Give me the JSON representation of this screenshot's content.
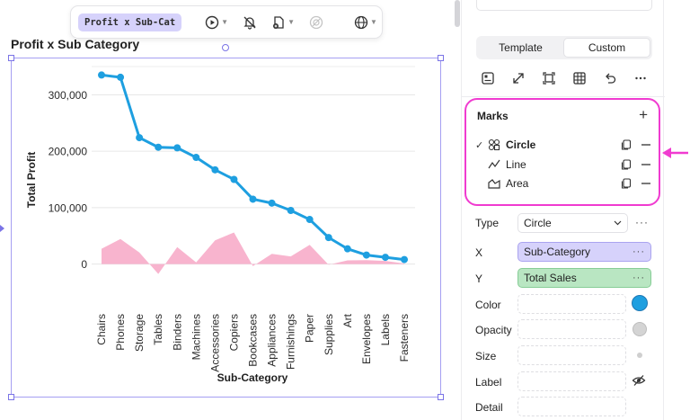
{
  "toolbar": {
    "chip_label": "Profit x Sub-Cat",
    "buttons": [
      "play-icon",
      "bell-off-icon",
      "file-plus-icon",
      "disabled-icon",
      "globe-icon"
    ]
  },
  "chart_title_text": "Profit x Sub Category",
  "chart_data": {
    "type": "line",
    "categories": [
      "Chairs",
      "Phones",
      "Storage",
      "Tables",
      "Binders",
      "Machines",
      "Accessories",
      "Copiers",
      "Bookcases",
      "Appliances",
      "Furnishings",
      "Paper",
      "Supplies",
      "Art",
      "Envelopes",
      "Labels",
      "Fasteners"
    ],
    "series": [
      {
        "mark": "line-circle",
        "color": "#1e9fe0",
        "values": [
          335000,
          331000,
          224000,
          207000,
          206000,
          189000,
          167000,
          150000,
          115000,
          108000,
          95000,
          79000,
          47000,
          27000,
          16000,
          12000,
          8000
        ]
      },
      {
        "mark": "area",
        "color": "#f8b4ce",
        "values": [
          27000,
          44500,
          20500,
          -17500,
          30000,
          3000,
          42000,
          56000,
          -3500,
          18100,
          13500,
          34000,
          -1200,
          6500,
          7000,
          5500,
          950
        ]
      }
    ],
    "xlabel": "Sub-Category",
    "ylabel": "Total Profit",
    "yticks": [
      0,
      100000,
      200000,
      300000
    ],
    "ytick_labels": [
      "0",
      "100,000",
      "200,000",
      "300,000"
    ],
    "ylim": [
      -50000,
      350000
    ],
    "grid": true
  },
  "panel": {
    "tabs": [
      "Template",
      "Custom"
    ],
    "active_tab": "Custom",
    "icons": [
      "layout-icon",
      "expand-icon",
      "fit-frame-icon",
      "table-icon",
      "undo-icon",
      "more-icon"
    ],
    "marks_title": "Marks",
    "marks": [
      {
        "label": "Circle",
        "icon": "circle-shapes-icon",
        "checked": true
      },
      {
        "label": "Line",
        "icon": "line-chart-icon",
        "checked": false
      },
      {
        "label": "Area",
        "icon": "area-chart-icon",
        "checked": false
      }
    ],
    "type_label": "Type",
    "type_value": "Circle",
    "x_label": "X",
    "x_value": "Sub-Category",
    "y_label": "Y",
    "y_value": "Total Sales",
    "color_label": "Color",
    "opacity_label": "Opacity",
    "size_label": "Size",
    "label_label": "Label",
    "detail_label": "Detail",
    "color_value": "#1e9fe0",
    "accent_color": "#f03bd0"
  }
}
